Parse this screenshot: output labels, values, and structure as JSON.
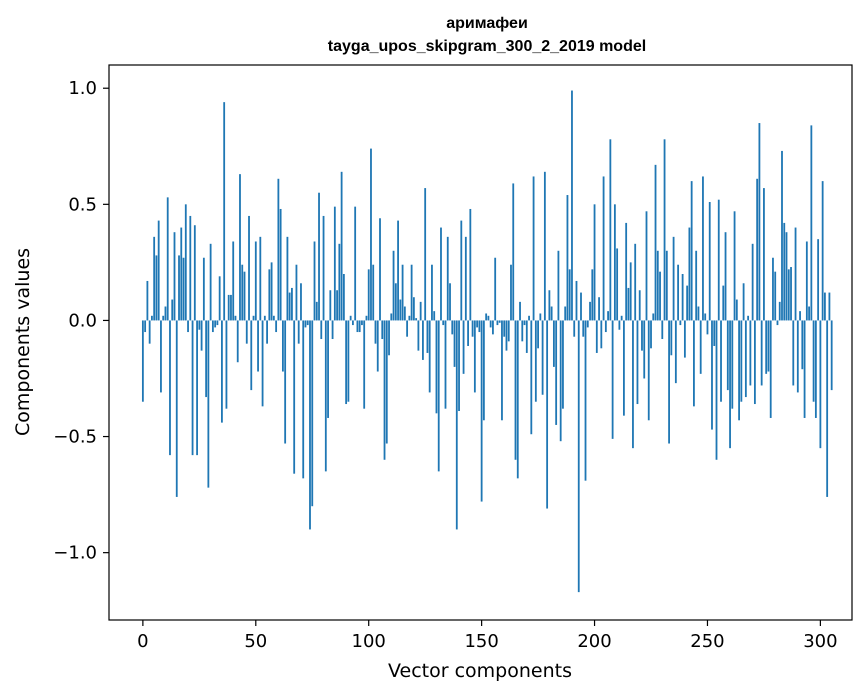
{
  "chart_data": {
    "type": "bar",
    "title": "аримафеи",
    "subtitle": "tayga_upos_skipgram_300_2_2019 model",
    "xlabel": "Vector components",
    "ylabel": "Components values",
    "xlim": [
      -15,
      314
    ],
    "ylim": [
      -1.29,
      1.1
    ],
    "xticks": [
      0,
      50,
      100,
      150,
      200,
      250,
      300
    ],
    "xtick_labels": [
      "0",
      "50",
      "100",
      "150",
      "200",
      "250",
      "300"
    ],
    "yticks": [
      -1.0,
      -0.5,
      0.0,
      0.5,
      1.0
    ],
    "ytick_labels": [
      "−1.0",
      "−0.5",
      "0.0",
      "0.5",
      "1.0"
    ],
    "grid": false,
    "bar_color": "#1f77b4",
    "values": [
      -0.35,
      -0.05,
      0.17,
      -0.1,
      0.02,
      0.36,
      0.28,
      0.43,
      -0.31,
      0.02,
      0.06,
      0.53,
      -0.58,
      0.09,
      0.38,
      -0.76,
      0.28,
      0.4,
      0.27,
      0.5,
      -0.05,
      0.45,
      -0.58,
      0.41,
      -0.58,
      -0.04,
      -0.13,
      0.27,
      -0.33,
      -0.72,
      0.33,
      -0.05,
      -0.03,
      -0.02,
      0.19,
      -0.44,
      0.94,
      -0.38,
      0.11,
      0.11,
      0.34,
      0.02,
      -0.18,
      0.63,
      0.24,
      0.21,
      -0.1,
      0.45,
      -0.3,
      0.02,
      0.34,
      -0.22,
      0.36,
      -0.37,
      0.02,
      -0.1,
      0.22,
      0.25,
      0.02,
      -0.05,
      0.61,
      0.48,
      -0.22,
      -0.53,
      0.36,
      0.12,
      0.14,
      -0.66,
      0.24,
      -0.1,
      0.16,
      -0.68,
      -0.03,
      -0.02,
      -0.9,
      -0.8,
      0.34,
      0.08,
      0.55,
      -0.08,
      0.45,
      -0.65,
      -0.42,
      0.13,
      -0.08,
      0.49,
      0.13,
      0.33,
      0.64,
      0.2,
      -0.36,
      -0.35,
      0.02,
      -0.02,
      0.49,
      -0.05,
      -0.05,
      -0.02,
      -0.38,
      0.02,
      0.22,
      0.74,
      0.24,
      -0.1,
      -0.22,
      0.44,
      -0.08,
      -0.6,
      -0.53,
      -0.15,
      0.03,
      0.3,
      0.16,
      0.43,
      0.09,
      0.24,
      0.06,
      -0.07,
      0.02,
      0.24,
      0.1,
      0.01,
      -0.13,
      0.08,
      -0.17,
      0.57,
      -0.14,
      -0.31,
      0.24,
      0.04,
      -0.4,
      -0.65,
      0.4,
      -0.02,
      -0.38,
      0.36,
      0.16,
      -0.06,
      -0.2,
      -0.9,
      -0.39,
      0.43,
      -0.23,
      0.36,
      -0.11,
      0.48,
      -0.07,
      -0.31,
      -0.03,
      -0.05,
      -0.78,
      -0.43,
      0.03,
      0.02,
      -0.03,
      -0.06,
      0.27,
      -0.02,
      -0.01,
      -0.43,
      -0.07,
      -0.13,
      -0.09,
      0.24,
      0.59,
      -0.6,
      -0.68,
      0.08,
      -0.09,
      -0.02,
      -0.14,
      0.02,
      -0.49,
      0.62,
      -0.35,
      -0.12,
      0.03,
      -0.32,
      0.64,
      -0.81,
      0.13,
      0.06,
      -0.2,
      -0.45,
      0.3,
      -0.52,
      -0.38,
      0.06,
      0.54,
      0.22,
      0.99,
      -0.07,
      0.17,
      -1.17,
      0.12,
      -0.07,
      -0.69,
      -0.03,
      0.08,
      0.22,
      0.5,
      -0.14,
      0.1,
      -0.12,
      0.62,
      -0.05,
      0.04,
      0.78,
      -0.51,
      0.5,
      0.31,
      -0.04,
      0.02,
      -0.41,
      0.42,
      0.14,
      0.25,
      -0.55,
      0.33,
      -0.36,
      0.13,
      -0.13,
      -0.25,
      0.47,
      -0.43,
      -0.12,
      0.03,
      0.67,
      0.3,
      0.21,
      -0.08,
      0.78,
      0.3,
      -0.53,
      -0.15,
      0.36,
      -0.27,
      0.24,
      -0.02,
      0.2,
      -0.16,
      0.15,
      0.4,
      0.6,
      -0.37,
      0.3,
      0.06,
      -0.23,
      0.62,
      0.03,
      -0.06,
      0.51,
      -0.47,
      -0.11,
      -0.6,
      0.52,
      -0.35,
      0.15,
      0.38,
      -0.3,
      -0.55,
      -0.38,
      0.47,
      0.09,
      -0.43,
      -0.35,
      0.16,
      -0.33,
      0.02,
      -0.28,
      0.33,
      -0.36,
      0.61,
      0.85,
      -0.28,
      0.57,
      -0.23,
      -0.22,
      -0.42,
      0.27,
      0.21,
      -0.02,
      0.08,
      0.73,
      0.42,
      0.38,
      0.22,
      0.23,
      -0.28,
      0.4,
      -0.31,
      0.04,
      -0.21,
      -0.42,
      0.34,
      0.06,
      0.84,
      -0.35,
      -0.42,
      0.35,
      -0.55,
      0.6,
      0.12,
      -0.76,
      0.12,
      -0.3
    ]
  }
}
